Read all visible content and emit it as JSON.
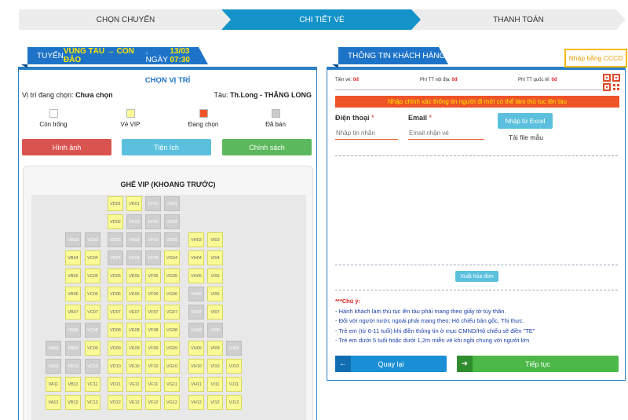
{
  "steps": [
    "CHỌN CHUYẾN",
    "CHI TIẾT VÉ",
    "THANH TOÁN"
  ],
  "route": {
    "prefix": "TUYẾN ",
    "route_name": "VŨNG TÀU → CÔN ĐẢO",
    "date_text": ", NGÀY ",
    "date": "13/03 07:30"
  },
  "seat_panel": {
    "title": "CHỌN VỊ TRÍ",
    "current_label": "Vị trí đang chọn:",
    "current_value": "Chưa chọn",
    "vessel_label": "Tàu:",
    "vessel_value": "Th.Long - THĂNG LONG",
    "legend": [
      {
        "label": "Còn trống",
        "color": "#ffffff"
      },
      {
        "label": "Vé VIP",
        "color": "#fafa96"
      },
      {
        "label": "Đang chọn",
        "color": "#ee5428"
      },
      {
        "label": "Đã bán",
        "color": "#cccccc"
      }
    ],
    "buttons": {
      "images": "Hình ảnh",
      "amenities": "Tiện ích",
      "policy": "Chính sách"
    },
    "coach_title": "GHẾ VIP (KHOANG TRƯỚC)"
  },
  "seats": [
    {
      "id": "VD01",
      "s": "vip"
    },
    {
      "id": "VE01",
      "s": "vip"
    },
    {
      "id": "VF01",
      "s": "sold"
    },
    {
      "id": "VG01",
      "s": "sold"
    },
    {
      "id": "VD02",
      "s": "vip"
    },
    {
      "id": "VE02",
      "s": "sold"
    },
    {
      "id": "VF02",
      "s": "sold"
    },
    {
      "id": "VG02",
      "s": "sold"
    },
    {
      "id": "VB03",
      "s": "sold"
    },
    {
      "id": "VC03",
      "s": "sold"
    },
    {
      "id": "VD03",
      "s": "sold"
    },
    {
      "id": "VE03",
      "s": "sold"
    },
    {
      "id": "VF03",
      "s": "sold"
    },
    {
      "id": "VG03",
      "s": "sold"
    },
    {
      "id": "VH03",
      "s": "vip"
    },
    {
      "id": "VI03",
      "s": "vip"
    },
    {
      "id": "VB04",
      "s": "vip"
    },
    {
      "id": "VC04",
      "s": "vip"
    },
    {
      "id": "VD04",
      "s": "sold"
    },
    {
      "id": "VE04",
      "s": "sold"
    },
    {
      "id": "VF04",
      "s": "sold"
    },
    {
      "id": "VG04",
      "s": "vip"
    },
    {
      "id": "VH04",
      "s": "vip"
    },
    {
      "id": "VI04",
      "s": "vip"
    },
    {
      "id": "VB05",
      "s": "vip"
    },
    {
      "id": "VC05",
      "s": "vip"
    },
    {
      "id": "VD05",
      "s": "vip"
    },
    {
      "id": "VE05",
      "s": "vip"
    },
    {
      "id": "VF05",
      "s": "vip"
    },
    {
      "id": "VG05",
      "s": "vip"
    },
    {
      "id": "VH05",
      "s": "vip"
    },
    {
      "id": "VI05",
      "s": "vip"
    },
    {
      "id": "VB06",
      "s": "vip"
    },
    {
      "id": "VC06",
      "s": "vip"
    },
    {
      "id": "VD06",
      "s": "vip"
    },
    {
      "id": "VE06",
      "s": "vip"
    },
    {
      "id": "VF06",
      "s": "vip"
    },
    {
      "id": "VG06",
      "s": "vip"
    },
    {
      "id": "VH06",
      "s": "sold"
    },
    {
      "id": "VI06",
      "s": "vip"
    },
    {
      "id": "VB07",
      "s": "vip"
    },
    {
      "id": "VC07",
      "s": "vip"
    },
    {
      "id": "VD07",
      "s": "vip"
    },
    {
      "id": "VE07",
      "s": "vip"
    },
    {
      "id": "VF07",
      "s": "vip"
    },
    {
      "id": "VG07",
      "s": "vip"
    },
    {
      "id": "VH07",
      "s": "sold"
    },
    {
      "id": "VI07",
      "s": "vip"
    },
    {
      "id": "VB08",
      "s": "sold"
    },
    {
      "id": "VC08",
      "s": "sold"
    },
    {
      "id": "VD08",
      "s": "vip"
    },
    {
      "id": "VE08",
      "s": "vip"
    },
    {
      "id": "VF08",
      "s": "vip"
    },
    {
      "id": "VG08",
      "s": "vip"
    },
    {
      "id": "VH08",
      "s": "sold"
    },
    {
      "id": "VI08",
      "s": "sold"
    },
    {
      "id": "VA09",
      "s": "sold"
    },
    {
      "id": "VB09",
      "s": "sold"
    },
    {
      "id": "VC09",
      "s": "vip"
    },
    {
      "id": "VD09",
      "s": "vip"
    },
    {
      "id": "VE09",
      "s": "vip"
    },
    {
      "id": "VF09",
      "s": "vip"
    },
    {
      "id": "VG09",
      "s": "vip"
    },
    {
      "id": "VH09",
      "s": "vip"
    },
    {
      "id": "VI09",
      "s": "vip"
    },
    {
      "id": "VJ09",
      "s": "sold"
    },
    {
      "id": "VA10",
      "s": "sold"
    },
    {
      "id": "VB10",
      "s": "sold"
    },
    {
      "id": "VC10",
      "s": "sold"
    },
    {
      "id": "VD10",
      "s": "vip"
    },
    {
      "id": "VE10",
      "s": "vip"
    },
    {
      "id": "VF10",
      "s": "vip"
    },
    {
      "id": "VG10",
      "s": "vip"
    },
    {
      "id": "VH10",
      "s": "vip"
    },
    {
      "id": "VI10",
      "s": "vip"
    },
    {
      "id": "VJ10",
      "s": "vip"
    },
    {
      "id": "VA11",
      "s": "vip"
    },
    {
      "id": "VB11",
      "s": "vip"
    },
    {
      "id": "VC11",
      "s": "vip"
    },
    {
      "id": "VD11",
      "s": "vip"
    },
    {
      "id": "VE11",
      "s": "vip"
    },
    {
      "id": "VF11",
      "s": "vip"
    },
    {
      "id": "VG11",
      "s": "vip"
    },
    {
      "id": "VH11",
      "s": "vip"
    },
    {
      "id": "VI11",
      "s": "vip"
    },
    {
      "id": "VJ11",
      "s": "vip"
    },
    {
      "id": "VA12",
      "s": "vip"
    },
    {
      "id": "VB12",
      "s": "vip"
    },
    {
      "id": "VC12",
      "s": "vip"
    },
    {
      "id": "VD12",
      "s": "vip"
    },
    {
      "id": "VE12",
      "s": "vip"
    },
    {
      "id": "VF12",
      "s": "vip"
    },
    {
      "id": "VG12",
      "s": "vip"
    },
    {
      "id": "VH12",
      "s": "vip"
    },
    {
      "id": "VI12",
      "s": "vip"
    },
    {
      "id": "VJ12",
      "s": "vip"
    }
  ],
  "customer_panel": {
    "title": "THÔNG TIN KHÁCH HÀNG",
    "cccd_button": "Nhập bằng CCCD",
    "fees": [
      {
        "label": "Tiền vé:",
        "value": "0đ"
      },
      {
        "label": "Phí TT nội địa:",
        "value": "0đ"
      },
      {
        "label": "Phí TT quốc tế:",
        "value": "0đ"
      }
    ],
    "warning": "Nhập chính xác thông tin người đi mới có thể làm thủ tục lên tàu",
    "phone_label": "Điện thoại",
    "phone_placeholder": "Nhập tin nhắn",
    "email_label": "Email",
    "email_placeholder": "Email nhận vé",
    "required_mark": "*",
    "excel_button": "Nhập từ Excel",
    "sample_link": "Tải file mẫu",
    "invoice_button": "Xuất hóa đơn",
    "notes_title": "***Chú ý:",
    "notes": [
      "- Hành khách làm thủ tục lên tàu phải mang theo giấy tờ tùy thân.",
      "- Đối với người nước ngoài phải mang theo: Hộ chiếu bản gốc, Thị thực.",
      "- Trẻ em (từ 6-11 tuổi) khi điền thông tin ở mục CMND/Hộ chiếu sẽ điền \"TE\"",
      "- Trẻ em dưới 5 tuổi hoặc dưới 1,2m miễn vé khi ngồi chung với người lớn"
    ],
    "back_button": "Quay lại",
    "next_button": "Tiếp tục",
    "back_arrow": "←",
    "next_arrow": "➜"
  }
}
